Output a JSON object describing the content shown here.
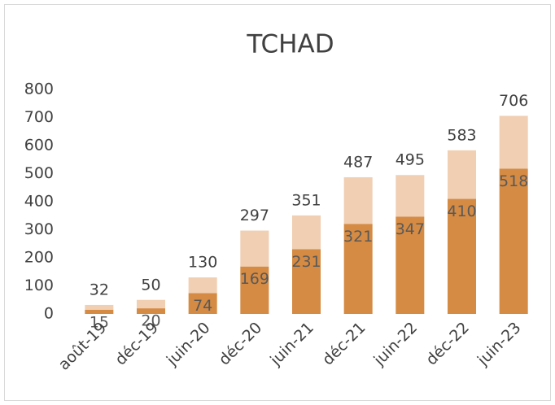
{
  "chart_data": {
    "type": "stacked_bar",
    "title": "TCHAD",
    "categories": [
      "août-19",
      "déc-19",
      "juin-20",
      "déc-20",
      "juin-21",
      "déc-21",
      "juin-22",
      "déc-22",
      "juin-23"
    ],
    "series": [
      {
        "color": "#d58b43",
        "values": [
          15,
          20,
          74,
          169,
          231,
          321,
          347,
          410,
          518
        ]
      },
      {
        "color": "#f0cfb2",
        "values": [
          17,
          30,
          56,
          128,
          120,
          166,
          148,
          173,
          188
        ]
      }
    ],
    "totals": [
      32,
      50,
      130,
      297,
      351,
      487,
      495,
      583,
      706
    ],
    "ylim": [
      0,
      800
    ],
    "yticks": [
      0,
      100,
      200,
      300,
      400,
      500,
      600,
      700,
      800
    ],
    "grid": false
  }
}
